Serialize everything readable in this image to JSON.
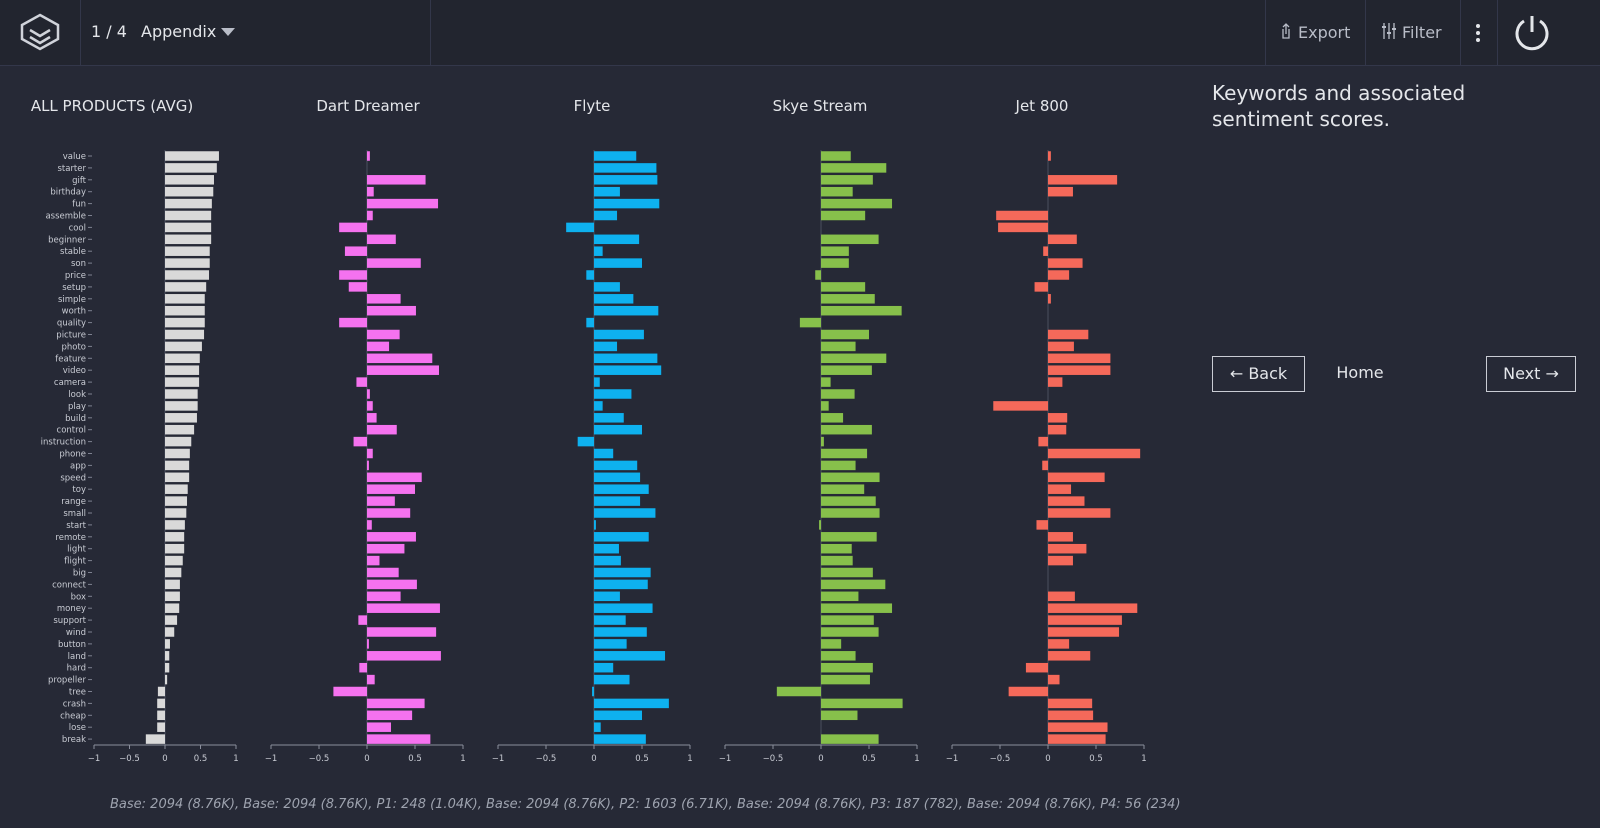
{
  "header": {
    "page": "1 / 4",
    "section": "Appendix",
    "export": "Export",
    "filter": "Filter"
  },
  "side": {
    "heading": "Keywords and associated sentiment scores.",
    "back": "← Back",
    "home": "Home",
    "next": "Next →"
  },
  "footer": "Base: 2094 (8.76K), Base: 2094 (8.76K), P1: 248 (1.04K), Base: 2094 (8.76K), P2: 1603 (6.71K), Base: 2094 (8.76K), P3: 187 (782), Base: 2094 (8.76K), P4: 56 (234)",
  "chart_data": {
    "type": "bar",
    "orientation": "horizontal",
    "categories": [
      "value",
      "starter",
      "gift",
      "birthday",
      "fun",
      "assemble",
      "cool",
      "beginner",
      "stable",
      "son",
      "price",
      "setup",
      "simple",
      "worth",
      "quality",
      "picture",
      "photo",
      "feature",
      "video",
      "camera",
      "look",
      "play",
      "build",
      "control",
      "instruction",
      "phone",
      "app",
      "speed",
      "toy",
      "range",
      "small",
      "start",
      "remote",
      "light",
      "flight",
      "big",
      "connect",
      "box",
      "money",
      "support",
      "wind",
      "button",
      "land",
      "hard",
      "propeller",
      "tree",
      "crash",
      "cheap",
      "lose",
      "break"
    ],
    "xlim": [
      -1,
      1
    ],
    "xticks": [
      {
        "value": -1,
        "label": "−1"
      },
      {
        "value": -0.5,
        "label": "−0.5"
      },
      0,
      0.5,
      1
    ],
    "series": [
      {
        "name": "ALL PRODUCTS (AVG)",
        "color": "#d9d9d9",
        "values": [
          0.76,
          0.73,
          0.69,
          0.68,
          0.66,
          0.65,
          0.65,
          0.65,
          0.63,
          0.63,
          0.62,
          0.58,
          0.56,
          0.56,
          0.56,
          0.55,
          0.52,
          0.49,
          0.48,
          0.48,
          0.46,
          0.46,
          0.45,
          0.41,
          0.37,
          0.35,
          0.34,
          0.34,
          0.32,
          0.31,
          0.3,
          0.28,
          0.27,
          0.27,
          0.25,
          0.23,
          0.21,
          0.21,
          0.2,
          0.17,
          0.13,
          0.07,
          0.06,
          0.06,
          0.03,
          -0.1,
          -0.11,
          -0.11,
          -0.11,
          -0.27
        ]
      },
      {
        "name": "Dart Dreamer",
        "color": "#f572ef",
        "values": [
          0.03,
          0,
          0.61,
          0.07,
          0.74,
          0.06,
          -0.29,
          0.3,
          -0.23,
          0.56,
          -0.29,
          -0.19,
          0.35,
          0.51,
          -0.29,
          0.34,
          0.23,
          0.68,
          0.75,
          -0.11,
          0.03,
          0.06,
          0.1,
          0.31,
          -0.14,
          0.06,
          0.02,
          0.57,
          0.5,
          0.29,
          0.45,
          0.05,
          0.51,
          0.39,
          0.13,
          0.33,
          0.52,
          0.35,
          0.76,
          -0.09,
          0.72,
          0.02,
          0.77,
          -0.08,
          0.08,
          -0.35,
          0.6,
          0.47,
          0.25,
          0.66
        ]
      },
      {
        "name": "Flyte",
        "color": "#0eb1ef",
        "values": [
          0.44,
          0.65,
          0.66,
          0.27,
          0.68,
          0.24,
          -0.29,
          0.47,
          0.09,
          0.5,
          -0.08,
          0.27,
          0.41,
          0.67,
          -0.08,
          0.52,
          0.24,
          0.66,
          0.7,
          0.06,
          0.39,
          0.09,
          0.31,
          0.5,
          -0.17,
          0.2,
          0.45,
          0.48,
          0.57,
          0.48,
          0.64,
          0.02,
          0.57,
          0.26,
          0.28,
          0.59,
          0.56,
          0.27,
          0.61,
          0.33,
          0.55,
          0.34,
          0.74,
          0.2,
          0.37,
          -0.02,
          0.78,
          0.5,
          0.07,
          0.54
        ]
      },
      {
        "name": "Skye Stream",
        "color": "#87c04b",
        "values": [
          0.31,
          0.68,
          0.54,
          0.33,
          0.74,
          0.46,
          0,
          0.6,
          0.29,
          0.29,
          -0.06,
          0.46,
          0.56,
          0.84,
          -0.22,
          0.5,
          0.36,
          0.68,
          0.53,
          0.1,
          0.35,
          0.08,
          0.23,
          0.53,
          0.03,
          0.48,
          0.36,
          0.61,
          0.45,
          0.57,
          0.61,
          -0.02,
          0.58,
          0.32,
          0.33,
          0.54,
          0.67,
          0.39,
          0.74,
          0.55,
          0.6,
          0.21,
          0.36,
          0.54,
          0.51,
          -0.46,
          0.85,
          0.38,
          0,
          0.6
        ]
      },
      {
        "name": "Jet 800",
        "color": "#f5695a",
        "values": [
          0.03,
          0,
          0.72,
          0.26,
          0,
          -0.54,
          -0.52,
          0.3,
          -0.05,
          0.36,
          0.22,
          -0.14,
          0.03,
          0,
          0,
          0.42,
          0.27,
          0.65,
          0.65,
          0.15,
          0,
          -0.57,
          0.2,
          0.19,
          -0.1,
          0.96,
          -0.06,
          0.59,
          0.24,
          0.38,
          0.65,
          -0.12,
          0.26,
          0.4,
          0.26,
          0,
          0,
          0.28,
          0.93,
          0.77,
          0.74,
          0.22,
          0.44,
          -0.23,
          0.12,
          -0.41,
          0.46,
          0.47,
          0.62,
          0.6
        ]
      }
    ]
  }
}
